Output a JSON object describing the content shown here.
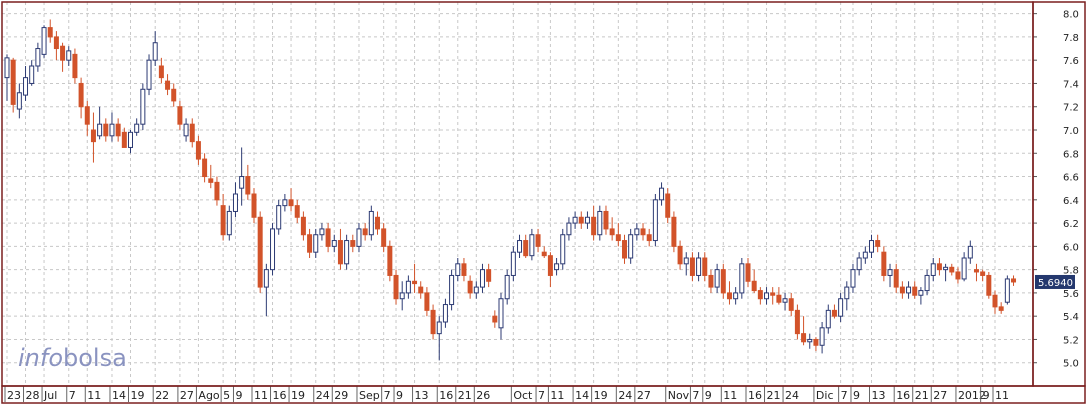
{
  "chart_data": {
    "type": "candlestick",
    "ylim": [
      4.8,
      8.1
    ],
    "y_ticks": [
      5.0,
      5.2,
      5.4,
      5.6,
      5.8,
      6.0,
      6.2,
      6.4,
      6.6,
      6.8,
      7.0,
      7.2,
      7.4,
      7.6,
      7.8,
      8.0
    ],
    "y_tick_labels": [
      "5.0",
      "5.2",
      "5.4",
      "5.6",
      "5.8",
      "6.0",
      "6.2",
      "6.4",
      "6.6",
      "6.8",
      "7.0",
      "7.2",
      "7.4",
      "7.6",
      "7.8",
      "8.0"
    ],
    "last_value_label": "5.6940",
    "last_value": 5.694,
    "grid": true,
    "watermark": {
      "part1": "info",
      "part2": "bolsa"
    },
    "colors": {
      "up": "#2c3a73",
      "down": "#d2532a",
      "frame": "#7a1f1f",
      "grid": "#c8c8c8",
      "label_bg": "#24386e",
      "watermark": "#8a93c0"
    },
    "x_labels": [
      {
        "i": 0,
        "text": "23"
      },
      {
        "i": 3,
        "text": "28"
      },
      {
        "i": 6,
        "text": "Jul"
      },
      {
        "i": 10,
        "text": "7"
      },
      {
        "i": 13,
        "text": "11"
      },
      {
        "i": 17,
        "text": "14"
      },
      {
        "i": 20,
        "text": "19"
      },
      {
        "i": 24,
        "text": "22"
      },
      {
        "i": 28,
        "text": "27"
      },
      {
        "i": 31,
        "text": "Ago"
      },
      {
        "i": 35,
        "text": "5"
      },
      {
        "i": 37,
        "text": "9"
      },
      {
        "i": 40,
        "text": "11"
      },
      {
        "i": 43,
        "text": "16"
      },
      {
        "i": 46,
        "text": "19"
      },
      {
        "i": 50,
        "text": "24"
      },
      {
        "i": 53,
        "text": "29"
      },
      {
        "i": 57,
        "text": "Sep"
      },
      {
        "i": 61,
        "text": "7"
      },
      {
        "i": 63,
        "text": "9"
      },
      {
        "i": 66,
        "text": "13"
      },
      {
        "i": 70,
        "text": "16"
      },
      {
        "i": 73,
        "text": "21"
      },
      {
        "i": 76,
        "text": "26"
      },
      {
        "i": 82,
        "text": "Oct"
      },
      {
        "i": 86,
        "text": "7"
      },
      {
        "i": 88,
        "text": "11"
      },
      {
        "i": 92,
        "text": "14"
      },
      {
        "i": 95,
        "text": "19"
      },
      {
        "i": 99,
        "text": "24"
      },
      {
        "i": 102,
        "text": "27"
      },
      {
        "i": 107,
        "text": "Nov"
      },
      {
        "i": 111,
        "text": "7"
      },
      {
        "i": 113,
        "text": "9"
      },
      {
        "i": 116,
        "text": "11"
      },
      {
        "i": 120,
        "text": "16"
      },
      {
        "i": 123,
        "text": "21"
      },
      {
        "i": 126,
        "text": "24"
      },
      {
        "i": 131,
        "text": "Dic"
      },
      {
        "i": 135,
        "text": "7"
      },
      {
        "i": 137,
        "text": "9"
      },
      {
        "i": 140,
        "text": "13"
      },
      {
        "i": 144,
        "text": "16"
      },
      {
        "i": 147,
        "text": "21"
      },
      {
        "i": 150,
        "text": "27"
      },
      {
        "i": 154,
        "text": "2012"
      },
      {
        "i": 158,
        "text": "9"
      },
      {
        "i": 160,
        "text": "11"
      }
    ],
    "candles": [
      [
        7.45,
        7.65,
        7.25,
        7.62
      ],
      [
        7.6,
        7.62,
        7.15,
        7.22
      ],
      [
        7.18,
        7.4,
        7.1,
        7.32
      ],
      [
        7.3,
        7.55,
        7.25,
        7.45
      ],
      [
        7.4,
        7.6,
        7.38,
        7.55
      ],
      [
        7.55,
        7.75,
        7.5,
        7.7
      ],
      [
        7.65,
        7.9,
        7.62,
        7.88
      ],
      [
        7.88,
        7.95,
        7.75,
        7.8
      ],
      [
        7.8,
        7.85,
        7.6,
        7.7
      ],
      [
        7.72,
        7.75,
        7.5,
        7.6
      ],
      [
        7.6,
        7.72,
        7.55,
        7.68
      ],
      [
        7.65,
        7.7,
        7.4,
        7.45
      ],
      [
        7.4,
        7.45,
        7.1,
        7.2
      ],
      [
        7.2,
        7.25,
        6.95,
        7.05
      ],
      [
        7.0,
        7.15,
        6.72,
        6.9
      ],
      [
        6.95,
        7.2,
        6.92,
        7.05
      ],
      [
        7.05,
        7.1,
        6.9,
        6.95
      ],
      [
        6.95,
        7.15,
        6.9,
        7.05
      ],
      [
        7.05,
        7.1,
        6.9,
        6.95
      ],
      [
        6.98,
        7.02,
        6.85,
        6.85
      ],
      [
        6.85,
        7.0,
        6.8,
        6.98
      ],
      [
        6.98,
        7.1,
        6.95,
        7.05
      ],
      [
        7.05,
        7.4,
        7.0,
        7.35
      ],
      [
        7.35,
        7.65,
        7.3,
        7.6
      ],
      [
        7.6,
        7.85,
        7.55,
        7.75
      ],
      [
        7.55,
        7.62,
        7.4,
        7.45
      ],
      [
        7.42,
        7.48,
        7.3,
        7.35
      ],
      [
        7.35,
        7.4,
        7.2,
        7.25
      ],
      [
        7.2,
        7.25,
        7.0,
        7.05
      ],
      [
        6.95,
        7.1,
        6.9,
        7.05
      ],
      [
        7.05,
        7.1,
        6.85,
        6.9
      ],
      [
        6.9,
        6.95,
        6.7,
        6.75
      ],
      [
        6.75,
        6.8,
        6.55,
        6.6
      ],
      [
        6.58,
        6.7,
        6.5,
        6.55
      ],
      [
        6.55,
        6.6,
        6.35,
        6.4
      ],
      [
        6.35,
        6.45,
        6.05,
        6.1
      ],
      [
        6.1,
        6.35,
        6.05,
        6.3
      ],
      [
        6.3,
        6.55,
        6.25,
        6.45
      ],
      [
        6.5,
        6.85,
        6.35,
        6.6
      ],
      [
        6.6,
        6.7,
        6.4,
        6.45
      ],
      [
        6.45,
        6.5,
        6.2,
        6.25
      ],
      [
        6.25,
        6.3,
        5.6,
        5.65
      ],
      [
        5.65,
        5.85,
        5.4,
        5.8
      ],
      [
        5.8,
        6.2,
        5.75,
        6.15
      ],
      [
        6.15,
        6.4,
        6.1,
        6.35
      ],
      [
        6.35,
        6.45,
        6.3,
        6.4
      ],
      [
        6.4,
        6.5,
        6.3,
        6.35
      ],
      [
        6.35,
        6.4,
        6.2,
        6.25
      ],
      [
        6.25,
        6.3,
        6.05,
        6.1
      ],
      [
        6.1,
        6.15,
        5.9,
        5.95
      ],
      [
        5.95,
        6.15,
        5.9,
        6.1
      ],
      [
        6.1,
        6.2,
        6.05,
        6.15
      ],
      [
        6.15,
        6.2,
        5.95,
        6.0
      ],
      [
        6.0,
        6.1,
        5.95,
        6.05
      ],
      [
        6.05,
        6.15,
        5.8,
        5.85
      ],
      [
        5.85,
        6.1,
        5.8,
        6.05
      ],
      [
        6.05,
        6.1,
        5.95,
        6.0
      ],
      [
        6.0,
        6.2,
        5.95,
        6.15
      ],
      [
        6.15,
        6.2,
        6.05,
        6.1
      ],
      [
        6.1,
        6.35,
        6.05,
        6.3
      ],
      [
        6.25,
        6.3,
        6.1,
        6.15
      ],
      [
        6.15,
        6.2,
        5.95,
        6.0
      ],
      [
        6.0,
        6.05,
        5.7,
        5.75
      ],
      [
        5.75,
        5.8,
        5.5,
        5.55
      ],
      [
        5.55,
        5.7,
        5.45,
        5.6
      ],
      [
        5.6,
        5.75,
        5.55,
        5.7
      ],
      [
        5.7,
        5.85,
        5.6,
        5.68
      ],
      [
        5.65,
        5.7,
        5.55,
        5.6
      ],
      [
        5.6,
        5.65,
        5.4,
        5.45
      ],
      [
        5.45,
        5.5,
        5.2,
        5.25
      ],
      [
        5.25,
        5.4,
        5.02,
        5.35
      ],
      [
        5.35,
        5.55,
        5.3,
        5.5
      ],
      [
        5.5,
        5.8,
        5.45,
        5.75
      ],
      [
        5.75,
        5.9,
        5.7,
        5.85
      ],
      [
        5.85,
        5.9,
        5.7,
        5.75
      ],
      [
        5.7,
        5.75,
        5.55,
        5.6
      ],
      [
        5.6,
        5.7,
        5.55,
        5.65
      ],
      [
        5.65,
        5.85,
        5.6,
        5.8
      ],
      [
        5.8,
        5.85,
        5.65,
        5.7
      ],
      [
        5.4,
        5.45,
        5.3,
        5.35
      ],
      [
        5.3,
        5.6,
        5.2,
        5.55
      ],
      [
        5.55,
        5.8,
        5.5,
        5.75
      ],
      [
        5.75,
        6.0,
        5.7,
        5.95
      ],
      [
        5.95,
        6.1,
        5.9,
        6.05
      ],
      [
        6.05,
        6.1,
        5.9,
        5.92
      ],
      [
        5.92,
        6.15,
        5.88,
        6.1
      ],
      [
        6.1,
        6.15,
        5.95,
        6.0
      ],
      [
        5.95,
        6.0,
        5.9,
        5.92
      ],
      [
        5.92,
        5.95,
        5.65,
        5.75
      ],
      [
        5.8,
        5.9,
        5.75,
        5.85
      ],
      [
        5.85,
        6.15,
        5.8,
        6.1
      ],
      [
        6.1,
        6.25,
        6.05,
        6.2
      ],
      [
        6.2,
        6.3,
        6.15,
        6.25
      ],
      [
        6.25,
        6.3,
        6.15,
        6.2
      ],
      [
        6.2,
        6.3,
        6.15,
        6.25
      ],
      [
        6.25,
        6.35,
        6.05,
        6.1
      ],
      [
        6.1,
        6.35,
        6.05,
        6.3
      ],
      [
        6.3,
        6.35,
        6.1,
        6.15
      ],
      [
        6.15,
        6.25,
        6.05,
        6.1
      ],
      [
        6.1,
        6.2,
        6.0,
        6.05
      ],
      [
        6.05,
        6.1,
        5.85,
        5.9
      ],
      [
        5.9,
        6.15,
        5.85,
        6.1
      ],
      [
        6.1,
        6.2,
        6.05,
        6.15
      ],
      [
        6.15,
        6.2,
        6.05,
        6.1
      ],
      [
        6.1,
        6.15,
        6.0,
        6.05
      ],
      [
        6.05,
        6.45,
        6.0,
        6.4
      ],
      [
        6.4,
        6.55,
        6.35,
        6.5
      ],
      [
        6.45,
        6.5,
        6.2,
        6.25
      ],
      [
        6.25,
        6.3,
        5.95,
        6.0
      ],
      [
        6.0,
        6.05,
        5.8,
        5.85
      ],
      [
        5.85,
        5.95,
        5.75,
        5.9
      ],
      [
        5.9,
        5.95,
        5.7,
        5.75
      ],
      [
        5.75,
        5.95,
        5.7,
        5.9
      ],
      [
        5.9,
        5.95,
        5.7,
        5.75
      ],
      [
        5.75,
        5.8,
        5.6,
        5.65
      ],
      [
        5.65,
        5.85,
        5.6,
        5.8
      ],
      [
        5.8,
        5.85,
        5.55,
        5.6
      ],
      [
        5.6,
        5.7,
        5.5,
        5.55
      ],
      [
        5.55,
        5.65,
        5.5,
        5.6
      ],
      [
        5.6,
        5.9,
        5.55,
        5.85
      ],
      [
        5.85,
        5.9,
        5.65,
        5.7
      ],
      [
        5.7,
        5.8,
        5.6,
        5.62
      ],
      [
        5.62,
        5.65,
        5.5,
        5.55
      ],
      [
        5.55,
        5.65,
        5.5,
        5.6
      ],
      [
        5.6,
        5.65,
        5.5,
        5.58
      ],
      [
        5.58,
        5.65,
        5.5,
        5.52
      ],
      [
        5.52,
        5.6,
        5.45,
        5.55
      ],
      [
        5.55,
        5.6,
        5.4,
        5.45
      ],
      [
        5.45,
        5.5,
        5.2,
        5.25
      ],
      [
        5.25,
        5.4,
        5.15,
        5.18
      ],
      [
        5.18,
        5.25,
        5.12,
        5.2
      ],
      [
        5.2,
        5.22,
        5.1,
        5.15
      ],
      [
        5.15,
        5.35,
        5.08,
        5.3
      ],
      [
        5.3,
        5.5,
        5.25,
        5.45
      ],
      [
        5.45,
        5.5,
        5.38,
        5.4
      ],
      [
        5.4,
        5.6,
        5.35,
        5.55
      ],
      [
        5.55,
        5.7,
        5.45,
        5.65
      ],
      [
        5.65,
        5.85,
        5.6,
        5.8
      ],
      [
        5.8,
        5.95,
        5.75,
        5.9
      ],
      [
        5.9,
        6.0,
        5.85,
        5.95
      ],
      [
        5.95,
        6.1,
        5.9,
        6.05
      ],
      [
        6.05,
        6.1,
        5.95,
        6.0
      ],
      [
        5.95,
        6.0,
        5.7,
        5.75
      ],
      [
        5.75,
        5.85,
        5.65,
        5.8
      ],
      [
        5.8,
        5.85,
        5.6,
        5.65
      ],
      [
        5.65,
        5.7,
        5.55,
        5.6
      ],
      [
        5.6,
        5.7,
        5.55,
        5.65
      ],
      [
        5.65,
        5.7,
        5.55,
        5.58
      ],
      [
        5.58,
        5.65,
        5.5,
        5.62
      ],
      [
        5.62,
        5.8,
        5.58,
        5.75
      ],
      [
        5.75,
        5.9,
        5.7,
        5.85
      ],
      [
        5.85,
        5.9,
        5.75,
        5.8
      ],
      [
        5.8,
        5.85,
        5.7,
        5.82
      ],
      [
        5.82,
        5.85,
        5.75,
        5.78
      ],
      [
        5.78,
        5.82,
        5.68,
        5.72
      ],
      [
        5.72,
        5.95,
        5.7,
        5.9
      ],
      [
        5.9,
        6.05,
        5.85,
        6.0
      ],
      [
        5.8,
        5.85,
        5.7,
        5.78
      ],
      [
        5.78,
        5.8,
        5.7,
        5.75
      ],
      [
        5.75,
        5.78,
        5.55,
        5.58
      ],
      [
        5.58,
        5.62,
        5.42,
        5.48
      ],
      [
        5.48,
        5.52,
        5.42,
        5.45
      ],
      [
        5.52,
        5.75,
        5.5,
        5.72
      ],
      [
        5.72,
        5.75,
        5.66,
        5.694
      ]
    ]
  }
}
